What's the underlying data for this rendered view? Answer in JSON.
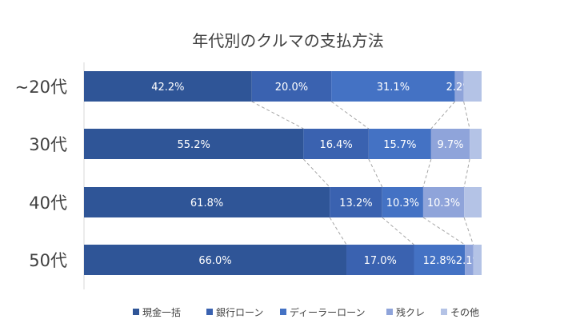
{
  "chart_data": {
    "type": "bar",
    "orientation": "horizontal",
    "stacked": "100%",
    "title": "年代別のクルマの支払方法",
    "categories": [
      "~20代",
      "30代",
      "40代",
      "50代"
    ],
    "series": [
      {
        "name": "現金一括",
        "color": "#2F5597",
        "values": [
          42.2,
          55.2,
          61.8,
          66.0
        ],
        "labels": [
          "42.2%",
          "55.2%",
          "61.8%",
          "66.0%"
        ]
      },
      {
        "name": "銀行ローン",
        "color": "#3A62B0",
        "values": [
          20.0,
          16.4,
          13.2,
          17.0
        ],
        "labels": [
          "20.0%",
          "16.4%",
          "13.2%",
          "17.0%"
        ]
      },
      {
        "name": "ディーラーローン",
        "color": "#4472C4",
        "values": [
          31.1,
          15.7,
          10.3,
          12.8
        ],
        "labels": [
          "31.1%",
          "15.7%",
          "10.3%",
          "12.8%"
        ]
      },
      {
        "name": "残クレ",
        "color": "#8FA4DA",
        "values": [
          2.2,
          9.7,
          10.3,
          2.1
        ],
        "labels": [
          "2.2%",
          "9.7%",
          "10.3%",
          "2.1%"
        ]
      },
      {
        "name": "その他",
        "color": "#B4C3E6",
        "values": [
          4.5,
          3.0,
          4.4,
          2.1
        ],
        "labels": [
          "",
          "",
          "",
          ""
        ]
      }
    ],
    "series_lines": true,
    "grid": false,
    "legend_position": "bottom"
  }
}
